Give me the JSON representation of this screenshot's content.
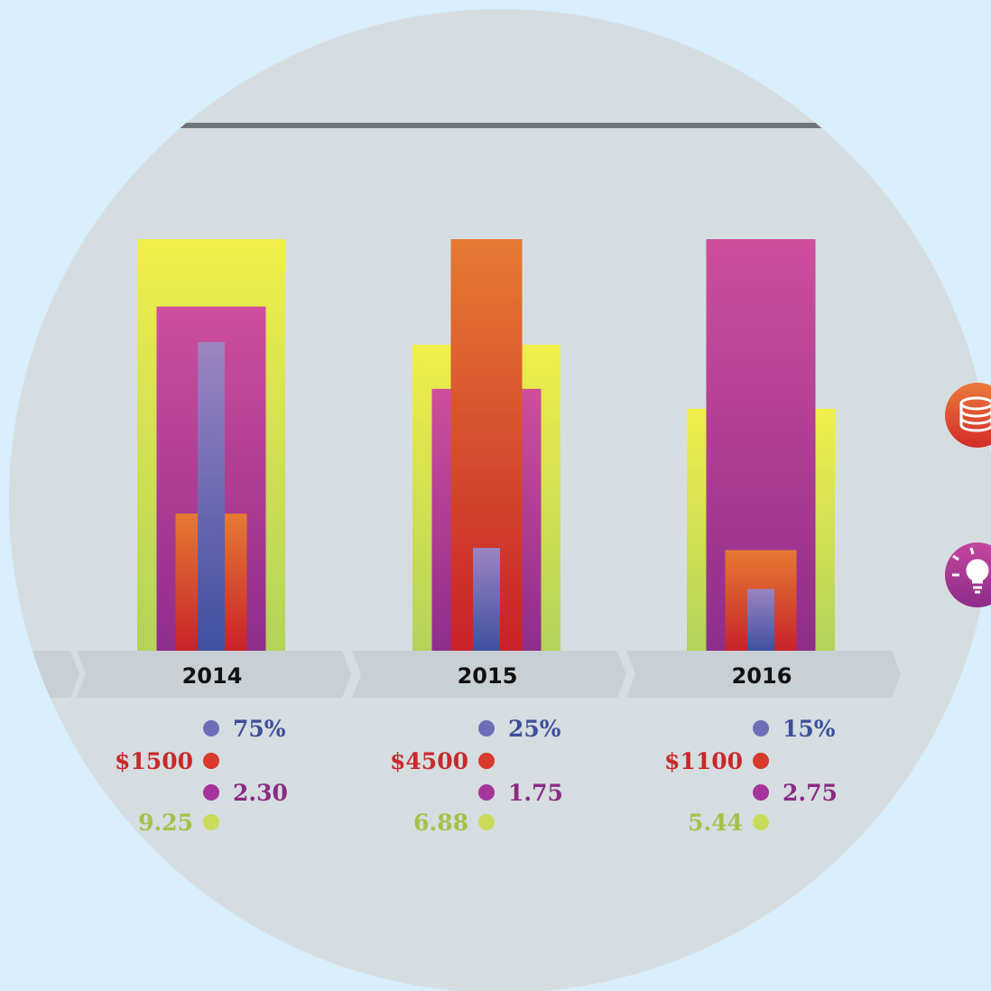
{
  "chart_data": {
    "type": "bar",
    "categories": [
      "2014",
      "2015",
      "2016"
    ],
    "series": [
      {
        "key": "percent",
        "values": [
          75,
          25,
          15
        ],
        "labels": [
          "75%",
          "25%",
          "15%"
        ],
        "color": "#3d4f9a"
      },
      {
        "key": "amount",
        "values": [
          1500,
          4500,
          1100
        ],
        "labels": [
          "$1500",
          "$4500",
          "$1100"
        ],
        "color": "#c9292a"
      },
      {
        "key": "ratio",
        "values": [
          2.3,
          1.75,
          2.75
        ],
        "labels": [
          "2.30",
          "1.75",
          "2.75"
        ],
        "color": "#8a2b84"
      },
      {
        "key": "score",
        "values": [
          9.25,
          6.88,
          5.44
        ],
        "labels": [
          "9.25",
          "6.88",
          "5.44"
        ],
        "color": "#a3c248"
      }
    ],
    "title": "",
    "xlabel": "",
    "ylabel": "",
    "grid": false,
    "legend": "none"
  },
  "side_icons": [
    {
      "name": "database-icon",
      "color": "#d9452c"
    },
    {
      "name": "lightbulb-icon",
      "color": "#a53093"
    }
  ],
  "colors": {
    "background": "#d8eefc",
    "disc": "#d6dde1",
    "band": "#c8d0d5",
    "rule": "#6e757c"
  }
}
